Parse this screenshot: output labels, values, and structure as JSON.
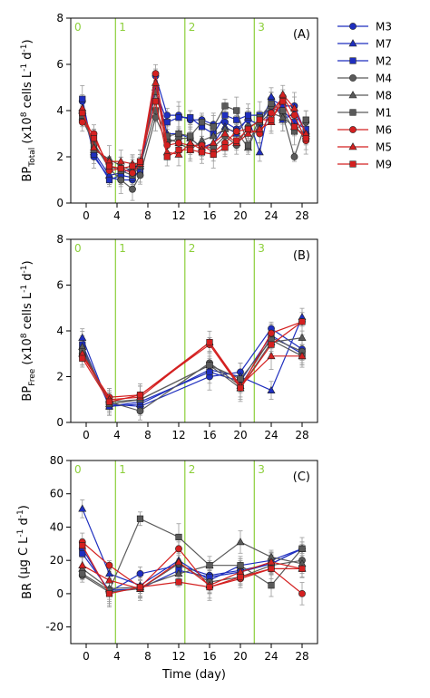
{
  "colors": {
    "blue": "#1f2fbf",
    "gray": "#5a5a5a",
    "red": "#d42020",
    "green": "#8ccf3a",
    "errorbar": "#9a9a9a"
  },
  "legend": {
    "placement": "top-right",
    "entries": [
      {
        "name": "M3",
        "color": "#1f2fbf",
        "marker": "circle"
      },
      {
        "name": "M7",
        "color": "#1f2fbf",
        "marker": "triangle"
      },
      {
        "name": "M2",
        "color": "#1f2fbf",
        "marker": "square"
      },
      {
        "name": "M4",
        "color": "#5a5a5a",
        "marker": "circle"
      },
      {
        "name": "M8",
        "color": "#5a5a5a",
        "marker": "triangle"
      },
      {
        "name": "M1",
        "color": "#5a5a5a",
        "marker": "square"
      },
      {
        "name": "M6",
        "color": "#d42020",
        "marker": "circle"
      },
      {
        "name": "M5",
        "color": "#d42020",
        "marker": "triangle"
      },
      {
        "name": "M9",
        "color": "#d42020",
        "marker": "square"
      }
    ]
  },
  "chart_data": [
    {
      "type": "line",
      "panel": "(A)",
      "ylabel_main": "BP",
      "ylabel_sub": "Total",
      "ylabel_unit": " (x10",
      "ylabel_exp1": "8",
      "ylabel_unit2": " cells L",
      "ylabel_exp2": "-1",
      "ylabel_unit3": " d",
      "ylabel_exp3": "-1",
      "ylabel_close": ")",
      "xlabel": "",
      "ylim": [
        0,
        8
      ],
      "yticks": [
        0,
        2,
        4,
        6,
        8
      ],
      "xlim": [
        -2,
        30
      ],
      "xticks": [
        0,
        4,
        8,
        12,
        16,
        20,
        24,
        28
      ],
      "phases": [
        {
          "x": -0.8,
          "label": "0"
        },
        {
          "x": 3.8,
          "label": "1"
        },
        {
          "x": 12.8,
          "label": "2"
        },
        {
          "x": 21.8,
          "label": "3"
        }
      ],
      "x": [
        -0.5,
        1,
        3,
        4.5,
        6,
        7,
        9,
        10.5,
        12,
        13.5,
        15,
        16.5,
        18,
        19.5,
        21,
        22.5,
        24,
        25.5,
        27,
        28.5
      ],
      "series": [
        {
          "name": "M3",
          "values": [
            4.4,
            2.0,
            1.1,
            1.0,
            1.0,
            1.5,
            5.5,
            3.8,
            3.8,
            3.6,
            3.6,
            3.4,
            3.5,
            3.2,
            3.6,
            3.4,
            4.5,
            4.2,
            4.2,
            3.0
          ]
        },
        {
          "name": "M7",
          "values": [
            4.0,
            2.2,
            1.2,
            1.3,
            1.5,
            1.6,
            5.0,
            3.0,
            3.0,
            2.8,
            2.4,
            2.6,
            3.3,
            3.0,
            3.7,
            2.2,
            4.6,
            3.6,
            3.9,
            3.1
          ]
        },
        {
          "name": "M2",
          "values": [
            4.5,
            2.1,
            1.0,
            1.2,
            1.1,
            1.4,
            4.9,
            3.5,
            3.7,
            3.7,
            3.3,
            3.0,
            3.8,
            3.6,
            3.8,
            3.8,
            4.1,
            4.0,
            3.5,
            3.2
          ]
        },
        {
          "name": "M4",
          "values": [
            3.6,
            2.6,
            1.5,
            1.0,
            0.6,
            1.2,
            3.7,
            2.6,
            2.8,
            2.8,
            2.4,
            2.4,
            2.9,
            2.5,
            3.3,
            3.5,
            4.2,
            3.8,
            2.0,
            3.5
          ]
        },
        {
          "name": "M8",
          "values": [
            4.0,
            2.3,
            1.9,
            1.6,
            1.4,
            1.8,
            4.8,
            2.8,
            2.6,
            2.3,
            2.7,
            2.9,
            3.2,
            3.1,
            2.4,
            3.5,
            3.9,
            3.7,
            3.3,
            2.9
          ]
        },
        {
          "name": "M1",
          "values": [
            3.8,
            2.5,
            1.6,
            1.4,
            1.2,
            1.6,
            4.0,
            2.9,
            3.0,
            2.9,
            3.5,
            3.3,
            4.2,
            4.0,
            2.5,
            3.7,
            4.3,
            4.0,
            3.1,
            3.6
          ]
        },
        {
          "name": "M6",
          "values": [
            3.5,
            3.0,
            1.4,
            1.5,
            1.3,
            1.7,
            5.6,
            2.5,
            2.6,
            2.5,
            2.5,
            2.2,
            2.6,
            3.1,
            3.2,
            3.0,
            3.9,
            4.6,
            3.8,
            2.7
          ]
        },
        {
          "name": "M5",
          "values": [
            4.1,
            2.4,
            1.8,
            1.8,
            1.7,
            1.7,
            5.2,
            2.2,
            2.1,
            2.6,
            2.3,
            2.6,
            3.0,
            2.6,
            3.0,
            3.2,
            3.5,
            4.7,
            4.1,
            3.0
          ]
        },
        {
          "name": "M9",
          "values": [
            3.9,
            2.8,
            1.6,
            1.5,
            1.6,
            1.8,
            4.4,
            2.0,
            2.3,
            2.3,
            2.2,
            2.1,
            2.4,
            2.7,
            3.2,
            3.6,
            3.6,
            4.4,
            3.3,
            2.8
          ]
        }
      ]
    },
    {
      "type": "line",
      "panel": "(B)",
      "ylabel_main": "BP",
      "ylabel_sub": "Free",
      "ylabel_unit": " (x10",
      "ylabel_exp1": "8",
      "ylabel_unit2": " cells L",
      "ylabel_exp2": "-1",
      "ylabel_unit3": " d",
      "ylabel_exp3": "-1",
      "ylabel_close": ")",
      "xlabel": "",
      "ylim": [
        0,
        8
      ],
      "yticks": [
        0,
        2,
        4,
        6,
        8
      ],
      "xlim": [
        -2,
        30
      ],
      "xticks": [
        0,
        4,
        8,
        12,
        16,
        20,
        24,
        28
      ],
      "phases": [
        {
          "x": -0.8,
          "label": "0"
        },
        {
          "x": 3.8,
          "label": "1"
        },
        {
          "x": 12.8,
          "label": "2"
        },
        {
          "x": 21.8,
          "label": "3"
        }
      ],
      "x": [
        -0.5,
        3,
        7,
        16,
        20,
        24,
        28
      ],
      "series": [
        {
          "name": "M3",
          "values": [
            3.2,
            0.8,
            0.7,
            2.0,
            2.2,
            4.1,
            3.2
          ]
        },
        {
          "name": "M7",
          "values": [
            3.7,
            0.7,
            0.8,
            2.3,
            2.0,
            1.4,
            4.6
          ]
        },
        {
          "name": "M2",
          "values": [
            3.4,
            0.7,
            0.9,
            2.2,
            1.8,
            3.8,
            3.0
          ]
        },
        {
          "name": "M4",
          "values": [
            3.0,
            0.9,
            0.5,
            2.6,
            1.6,
            3.7,
            3.1
          ]
        },
        {
          "name": "M8",
          "values": [
            3.3,
            0.8,
            1.0,
            2.5,
            1.5,
            3.5,
            3.7
          ]
        },
        {
          "name": "M1",
          "values": [
            3.1,
            0.9,
            1.0,
            2.5,
            1.9,
            3.6,
            2.9
          ]
        },
        {
          "name": "M6",
          "values": [
            2.9,
            1.1,
            1.2,
            3.4,
            1.5,
            3.9,
            4.4
          ]
        },
        {
          "name": "M5",
          "values": [
            3.0,
            1.0,
            1.1,
            3.5,
            1.6,
            2.9,
            2.9
          ]
        },
        {
          "name": "M9",
          "values": [
            2.8,
            0.9,
            1.2,
            3.5,
            1.5,
            3.4,
            4.4
          ]
        }
      ]
    },
    {
      "type": "line",
      "panel": "(C)",
      "ylabel_main": "BR",
      "ylabel_sub": "",
      "ylabel_unit": " (µg C L",
      "ylabel_exp1": "-1",
      "ylabel_unit2": " d",
      "ylabel_exp2": "-1",
      "ylabel_unit3": "",
      "ylabel_exp3": "",
      "ylabel_close": ")",
      "xlabel": "Time (day)",
      "ylim": [
        -30,
        80
      ],
      "yticks": [
        -20,
        0,
        20,
        40,
        60,
        80
      ],
      "xlim": [
        -2,
        30
      ],
      "xticks": [
        0,
        4,
        8,
        12,
        16,
        20,
        24,
        28
      ],
      "phases": [
        {
          "x": -0.8,
          "label": "0"
        },
        {
          "x": 3.8,
          "label": "1"
        },
        {
          "x": 12.8,
          "label": "2"
        },
        {
          "x": 21.8,
          "label": "3"
        }
      ],
      "x": [
        -0.5,
        3,
        7,
        12,
        16,
        20,
        24,
        28
      ],
      "series": [
        {
          "name": "M3",
          "values": [
            27,
            1,
            12,
            17,
            11,
            14,
            18,
            27
          ]
        },
        {
          "name": "M7",
          "values": [
            51,
            12,
            5,
            20,
            8,
            17,
            20,
            27
          ]
        },
        {
          "name": "M2",
          "values": [
            24,
            2,
            3,
            14,
            10,
            13,
            18,
            27
          ]
        },
        {
          "name": "M4",
          "values": [
            11,
            1,
            3,
            18,
            7,
            10,
            17,
            20
          ]
        },
        {
          "name": "M8",
          "values": [
            15,
            3,
            4,
            12,
            17,
            31,
            22,
            18
          ]
        },
        {
          "name": "M1",
          "values": [
            12,
            2,
            45,
            34,
            17,
            17,
            5,
            27
          ]
        },
        {
          "name": "M6",
          "values": [
            31,
            17,
            4,
            27,
            4,
            9,
            15,
            0
          ]
        },
        {
          "name": "M5",
          "values": [
            17,
            8,
            3,
            19,
            5,
            13,
            19,
            15
          ]
        },
        {
          "name": "M9",
          "values": [
            29,
            0,
            4,
            7,
            4,
            10,
            15,
            15
          ]
        }
      ]
    }
  ]
}
